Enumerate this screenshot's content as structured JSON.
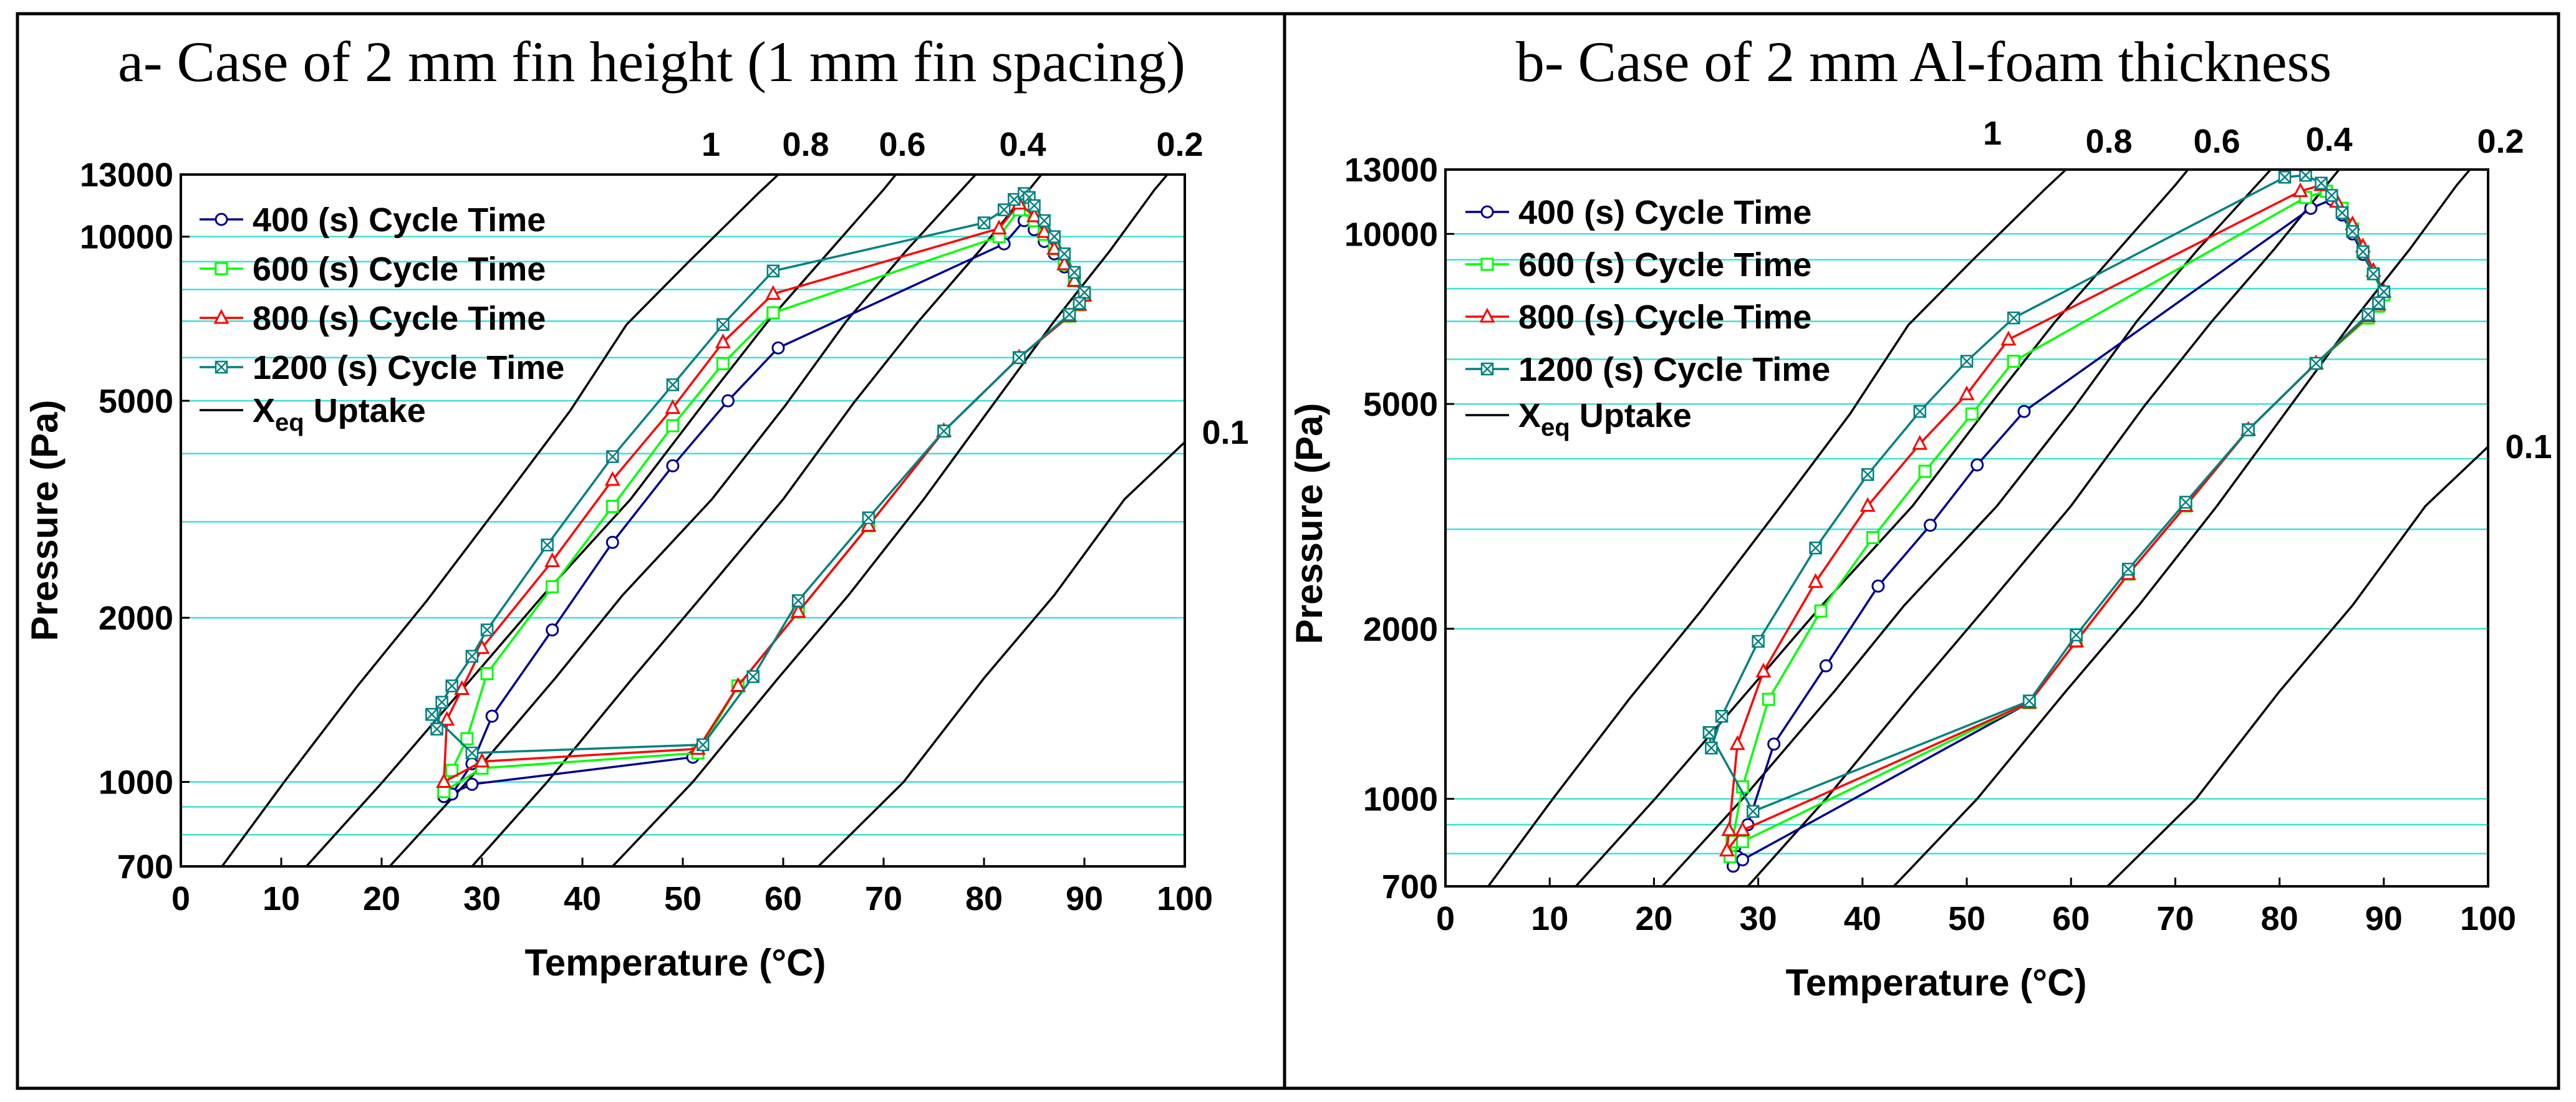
{
  "chart_data": [
    {
      "type": "line",
      "title": "a- Case of 2 mm fin height (1 mm fin spacing)",
      "xlabel": "Temperature (°C)",
      "ylabel": "Pressure (Pa)",
      "xlim": [
        0,
        100
      ],
      "ylim": [
        700,
        13000
      ],
      "yscale": "log",
      "x_ticks": [
        "0",
        "10",
        "20",
        "30",
        "40",
        "50",
        "60",
        "70",
        "80",
        "90",
        "100"
      ],
      "y_ticks": [
        "700",
        "1000",
        "2000",
        "5000",
        "10000",
        "13000"
      ],
      "legend": [
        "400 (s) Cycle Time",
        "600 (s) Cycle Time",
        "800 (s) Cycle Time",
        "1200 (s) Cycle Time",
        "X",
        "eq",
        " Uptake"
      ],
      "legend_position": "top-left",
      "xeq_labels": [
        "1",
        "0.8",
        "0.6",
        "0.4",
        "0.2",
        "0.1"
      ],
      "xeq_lines": [
        {
          "label": "1",
          "points": [
            [
              4.1,
              700
            ],
            [
              10.3,
              1000
            ],
            [
              17.6,
              1500
            ],
            [
              24.5,
              2150
            ],
            [
              31.9,
              3250
            ],
            [
              38.8,
              4800
            ],
            [
              44.4,
              6900
            ],
            [
              50.6,
              9000
            ],
            [
              57.5,
              12000
            ],
            [
              61.2,
              13900
            ]
          ]
        },
        {
          "label": "0.8",
          "points": [
            [
              12.5,
              700
            ],
            [
              20.1,
              1000
            ],
            [
              29.0,
              1550
            ],
            [
              36.1,
              2200
            ],
            [
              44.8,
              3300
            ],
            [
              52.1,
              4950
            ],
            [
              58.5,
              7000
            ],
            [
              64.6,
              9400
            ],
            [
              70.0,
              12200
            ],
            [
              72.5,
              13900
            ]
          ]
        },
        {
          "label": "0.6",
          "points": [
            [
              20.8,
              700
            ],
            [
              28.5,
              1000
            ],
            [
              37.3,
              1550
            ],
            [
              44.0,
              2200
            ],
            [
              52.9,
              3300
            ],
            [
              60.2,
              4900
            ],
            [
              66.3,
              7000
            ],
            [
              72.2,
              9400
            ],
            [
              77.8,
              12200
            ],
            [
              80.6,
              13900
            ]
          ]
        },
        {
          "label": "0.4",
          "points": [
            [
              29.0,
              700
            ],
            [
              36.5,
              1000
            ],
            [
              45.0,
              1550
            ],
            [
              52.0,
              2200
            ],
            [
              60.0,
              3300
            ],
            [
              67.0,
              4950
            ],
            [
              73.5,
              7000
            ],
            [
              79.5,
              9400
            ],
            [
              84.5,
              12200
            ],
            [
              87.0,
              13900
            ]
          ]
        },
        {
          "label": "0.2",
          "points": [
            [
              43.0,
              700
            ],
            [
              51.0,
              1000
            ],
            [
              59.5,
              1550
            ],
            [
              66.5,
              2200
            ],
            [
              74.0,
              3300
            ],
            [
              81.0,
              4950
            ],
            [
              87.0,
              7000
            ],
            [
              92.5,
              9400
            ],
            [
              97.0,
              12200
            ],
            [
              99.6,
              13900
            ]
          ]
        },
        {
          "label": "0.1",
          "points": [
            [
              63.5,
              700
            ],
            [
              72.0,
              1000
            ],
            [
              80.0,
              1550
            ],
            [
              87.0,
              2200
            ],
            [
              94.0,
              3300
            ],
            [
              100,
              4200
            ]
          ]
        }
      ],
      "series": [
        {
          "name": "400 (s) Cycle Time",
          "color": "#00008b",
          "marker": "circle",
          "x": [
            26.2,
            27,
            29,
            31,
            37,
            43,
            49,
            54.5,
            59.5,
            82,
            84,
            85,
            86,
            87,
            88,
            89,
            90,
            89.5,
            88.5,
            83.5,
            76,
            68.5,
            61.5,
            55.5,
            51,
            29,
            26.2
          ],
          "y": [
            940,
            950,
            1080,
            1320,
            1900,
            2750,
            3800,
            5000,
            6250,
            9700,
            10700,
            10300,
            9800,
            9300,
            8800,
            8300,
            7800,
            7500,
            7150,
            6000,
            4400,
            2950,
            2050,
            1500,
            1110,
            990,
            940
          ]
        },
        {
          "name": "600 (s) Cycle Time",
          "color": "#00ff00",
          "marker": "square",
          "x": [
            26.2,
            27,
            28.5,
            30.5,
            37,
            43,
            49,
            54,
            59,
            81.5,
            83.5,
            85,
            86,
            87,
            88,
            89,
            90,
            89.5,
            88.5,
            83.5,
            76,
            68.5,
            61.5,
            55.5,
            51.5,
            30,
            26.2
          ],
          "y": [
            960,
            1050,
            1200,
            1580,
            2280,
            3200,
            4500,
            5850,
            7250,
            10000,
            11200,
            10700,
            10100,
            9500,
            8900,
            8300,
            7800,
            7500,
            7150,
            6000,
            4400,
            2950,
            2050,
            1500,
            1130,
            1060,
            960
          ]
        },
        {
          "name": "800 (s) Cycle Time",
          "color": "#ff0000",
          "marker": "triangle",
          "x": [
            26.2,
            26.5,
            28,
            30,
            37,
            43,
            49,
            54,
            59,
            81.5,
            83.5,
            85,
            86,
            87,
            88,
            89,
            90,
            89.5,
            88.5,
            83.5,
            76,
            68.5,
            61.5,
            55.5,
            51.5,
            30,
            26.2
          ],
          "y": [
            1000,
            1300,
            1480,
            1760,
            2540,
            3580,
            4850,
            6400,
            7850,
            10350,
            11500,
            10900,
            10200,
            9500,
            8900,
            8300,
            7800,
            7500,
            7150,
            6000,
            4400,
            2950,
            2050,
            1500,
            1150,
            1090,
            1000
          ]
        },
        {
          "name": "1200 (s) Cycle Time",
          "color": "#008080",
          "marker": "cross",
          "x": [
            25,
            25.5,
            26,
            27,
            29,
            30.5,
            36.5,
            43,
            49,
            54,
            59,
            80,
            82,
            83,
            84,
            84.5,
            85,
            86,
            87,
            88,
            89,
            90,
            89.5,
            88.5,
            83.5,
            76,
            68.5,
            61.5,
            57,
            52,
            29,
            25
          ],
          "y": [
            1330,
            1250,
            1400,
            1500,
            1700,
            1900,
            2720,
            3950,
            5350,
            6900,
            8650,
            10600,
            11200,
            11700,
            12000,
            11800,
            11400,
            10700,
            10000,
            9300,
            8600,
            7900,
            7550,
            7200,
            6000,
            4400,
            3050,
            2150,
            1560,
            1170,
            1130,
            1330
          ]
        }
      ]
    },
    {
      "type": "line",
      "title": "b- Case of 2 mm Al-foam thickness",
      "xlabel": "Temperature (°C)",
      "ylabel": "Pressure (Pa)",
      "xlim": [
        0,
        100
      ],
      "ylim": [
        700,
        13000
      ],
      "yscale": "log",
      "x_ticks": [
        "0",
        "10",
        "20",
        "30",
        "40",
        "50",
        "60",
        "70",
        "80",
        "90",
        "100"
      ],
      "y_ticks": [
        "700",
        "1000",
        "2000",
        "5000",
        "10000",
        "13000"
      ],
      "legend": [
        "400 (s) Cycle Time",
        "600 (s) Cycle Time",
        "800 (s) Cycle Time",
        "1200 (s) Cycle Time",
        "X",
        "eq",
        " Uptake"
      ],
      "legend_position": "top-left",
      "xeq_labels": [
        "1",
        "0.8",
        "0.6",
        "0.4",
        "0.2",
        "0.1"
      ],
      "xeq_lines": [
        {
          "label": "1",
          "points": [
            [
              4.1,
              700
            ],
            [
              10.3,
              1000
            ],
            [
              17.6,
              1500
            ],
            [
              24.5,
              2150
            ],
            [
              31.9,
              3250
            ],
            [
              38.8,
              4800
            ],
            [
              44.4,
              6900
            ],
            [
              50.6,
              9000
            ],
            [
              57.5,
              12000
            ],
            [
              61.2,
              13900
            ]
          ]
        },
        {
          "label": "0.8",
          "points": [
            [
              12.5,
              700
            ],
            [
              20.1,
              1000
            ],
            [
              29.0,
              1550
            ],
            [
              36.1,
              2200
            ],
            [
              44.8,
              3300
            ],
            [
              52.1,
              4950
            ],
            [
              58.5,
              7000
            ],
            [
              64.6,
              9400
            ],
            [
              70.0,
              12200
            ],
            [
              72.5,
              13900
            ]
          ]
        },
        {
          "label": "0.6",
          "points": [
            [
              20.8,
              700
            ],
            [
              28.5,
              1000
            ],
            [
              37.3,
              1550
            ],
            [
              44.0,
              2200
            ],
            [
              52.9,
              3300
            ],
            [
              60.2,
              4900
            ],
            [
              66.3,
              7000
            ],
            [
              72.2,
              9400
            ],
            [
              77.8,
              12200
            ],
            [
              80.6,
              13900
            ]
          ]
        },
        {
          "label": "0.4",
          "points": [
            [
              29.0,
              700
            ],
            [
              36.5,
              1000
            ],
            [
              45.0,
              1550
            ],
            [
              52.0,
              2200
            ],
            [
              60.0,
              3300
            ],
            [
              67.0,
              4950
            ],
            [
              73.5,
              7000
            ],
            [
              79.5,
              9400
            ],
            [
              84.5,
              12200
            ],
            [
              87.0,
              13900
            ]
          ]
        },
        {
          "label": "0.2",
          "points": [
            [
              43.0,
              700
            ],
            [
              51.0,
              1000
            ],
            [
              59.5,
              1550
            ],
            [
              66.5,
              2200
            ],
            [
              74.0,
              3300
            ],
            [
              81.0,
              4950
            ],
            [
              87.0,
              7000
            ],
            [
              92.5,
              9400
            ],
            [
              97.0,
              12200
            ],
            [
              99.6,
              13900
            ]
          ]
        },
        {
          "label": "0.1",
          "points": [
            [
              63.5,
              700
            ],
            [
              72.0,
              1000
            ],
            [
              80.0,
              1550
            ],
            [
              87.0,
              2200
            ],
            [
              94.0,
              3300
            ],
            [
              100,
              4200
            ]
          ]
        }
      ],
      "series": [
        {
          "name": "400 (s) Cycle Time",
          "color": "#00008b",
          "marker": "circle",
          "x": [
            27.6,
            28,
            29,
            31.5,
            36.5,
            41.5,
            46.5,
            51,
            55.5,
            83,
            85,
            86,
            87,
            88,
            89,
            90,
            89.5,
            88.5,
            83.5,
            77,
            71,
            65.5,
            60.5,
            56,
            28.5,
            27.6
          ],
          "y": [
            760,
            790,
            900,
            1250,
            1720,
            2380,
            3050,
            3900,
            4850,
            11100,
            11500,
            10800,
            10000,
            9200,
            8500,
            7800,
            7450,
            7100,
            5900,
            4500,
            3300,
            2500,
            1900,
            1480,
            780,
            760
          ]
        },
        {
          "name": "600 (s) Cycle Time",
          "color": "#00ff00",
          "marker": "square",
          "x": [
            27.3,
            27.5,
            28.5,
            31,
            36,
            41,
            46,
            50.5,
            54.5,
            82.5,
            84.5,
            86,
            87,
            88,
            89,
            90,
            89.5,
            88.5,
            83.5,
            77,
            71,
            65.5,
            60.5,
            56,
            28.5,
            27.3
          ],
          "y": [
            790,
            840,
            1050,
            1500,
            2150,
            2900,
            3800,
            4800,
            5950,
            11600,
            11900,
            11100,
            10200,
            9300,
            8500,
            7800,
            7450,
            7100,
            5900,
            4500,
            3300,
            2500,
            1900,
            1480,
            840,
            790
          ]
        },
        {
          "name": "800 (s) Cycle Time",
          "color": "#ff0000",
          "marker": "triangle",
          "x": [
            27,
            27.2,
            28,
            30.5,
            35.5,
            40.5,
            45.5,
            50,
            54,
            82,
            84,
            85.5,
            87,
            88,
            89,
            90,
            89.5,
            88.5,
            83.5,
            77,
            71,
            65.5,
            60.5,
            56,
            28.5,
            27
          ],
          "y": [
            810,
            880,
            1250,
            1680,
            2420,
            3300,
            4250,
            5200,
            6500,
            11900,
            12200,
            11400,
            10400,
            9500,
            8600,
            7900,
            7500,
            7150,
            5900,
            4500,
            3300,
            2500,
            1900,
            1480,
            880,
            810
          ]
        },
        {
          "name": "1200 (s) Cycle Time",
          "color": "#008080",
          "marker": "cross",
          "x": [
            25.3,
            25.5,
            26.5,
            30,
            35.5,
            40.5,
            45.5,
            50,
            54.5,
            80.5,
            82.5,
            84,
            85,
            86,
            87,
            88,
            89,
            90,
            89.5,
            88.5,
            83.5,
            77,
            71,
            65.5,
            60.5,
            56,
            29.5,
            25.3
          ],
          "y": [
            1310,
            1230,
            1400,
            1900,
            2780,
            3750,
            4850,
            5950,
            7100,
            12600,
            12700,
            12300,
            11700,
            10900,
            10100,
            9300,
            8500,
            7900,
            7550,
            7200,
            5900,
            4500,
            3350,
            2550,
            1950,
            1490,
            950,
            1310
          ]
        }
      ]
    }
  ]
}
